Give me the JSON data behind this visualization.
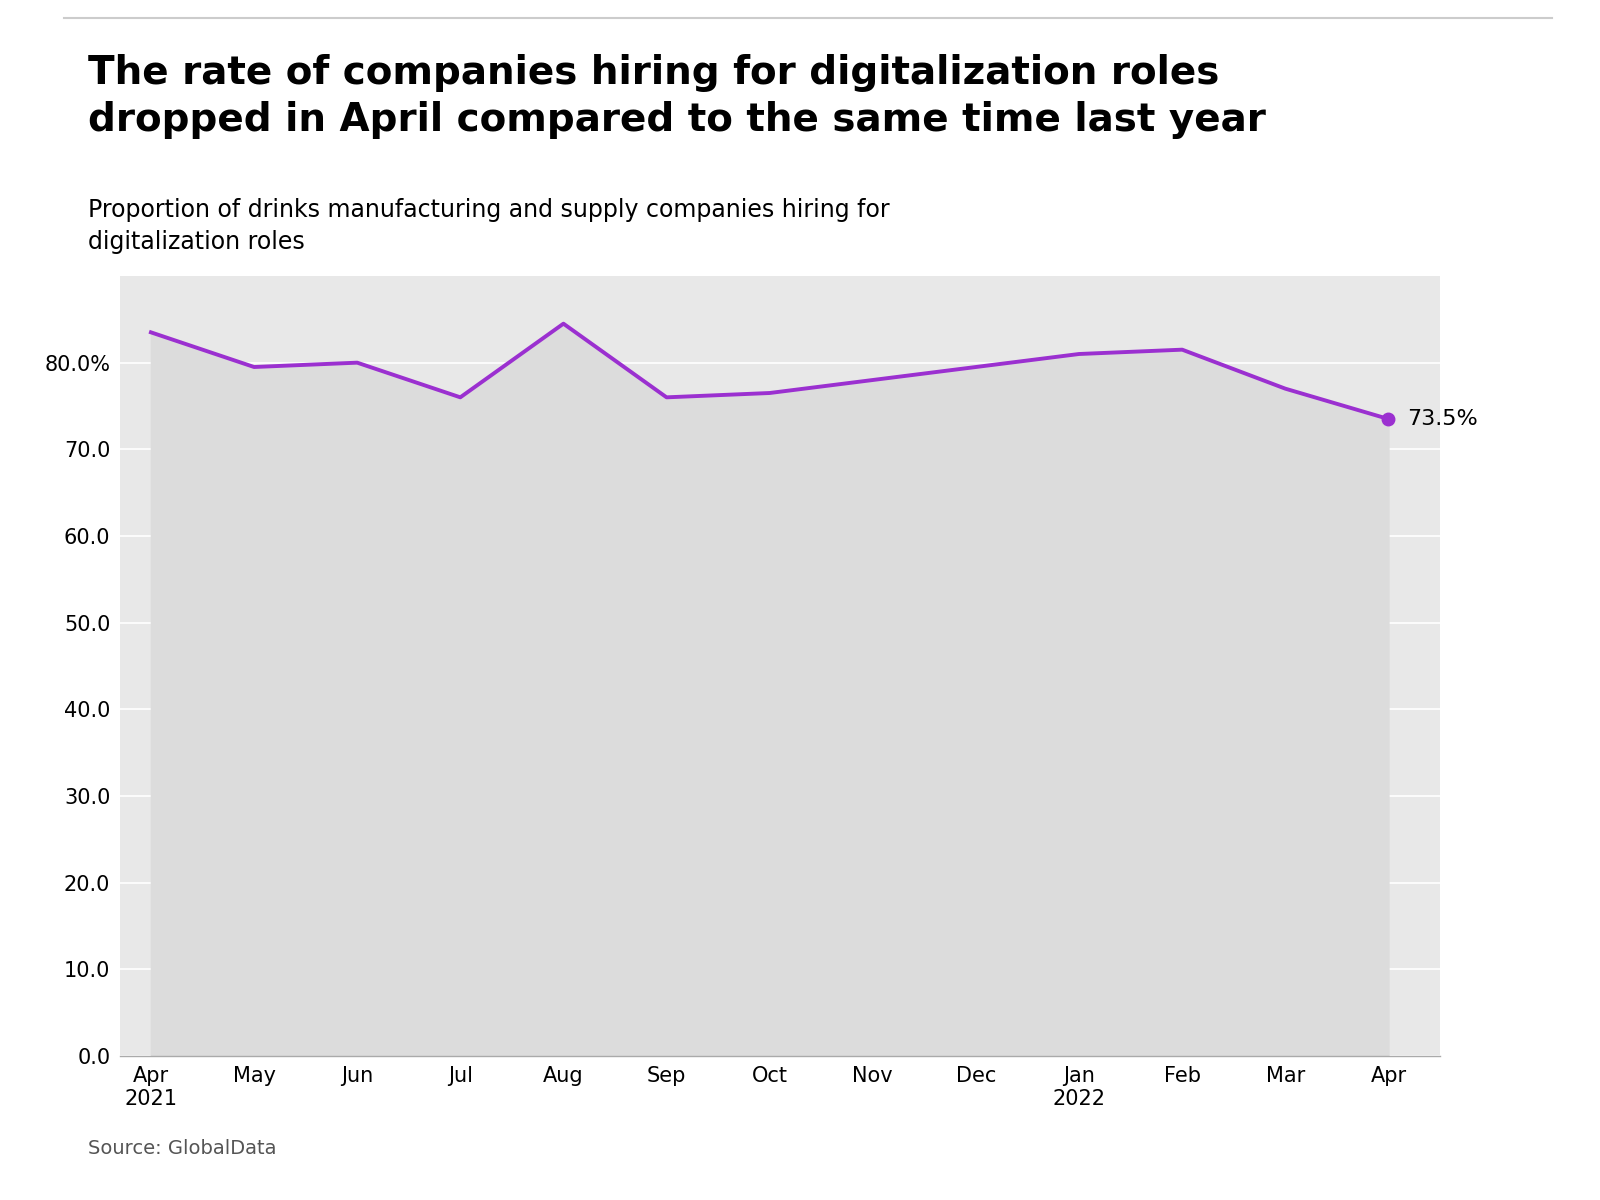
{
  "title": "The rate of companies hiring for digitalization roles\ndropped in April compared to the same time last year",
  "subtitle": "Proportion of drinks manufacturing and supply companies hiring for\ndigitalization roles",
  "source": "Source: GlobalData",
  "x_labels": [
    "Apr\n2021",
    "May",
    "Jun",
    "Jul",
    "Aug",
    "Sep",
    "Oct",
    "Nov",
    "Dec",
    "Jan\n2022",
    "Feb",
    "Mar",
    "Apr"
  ],
  "y_values": [
    83.5,
    79.5,
    80.0,
    76.0,
    84.5,
    76.0,
    76.5,
    78.0,
    79.5,
    81.0,
    81.5,
    77.0,
    73.5
  ],
  "line_color": "#9b30d0",
  "fill_color": "#dcdcdc",
  "end_label": "73.5%",
  "figure_bg_color": "#ffffff",
  "plot_bg_color": "#e8e8e8",
  "ylim": [
    0,
    90
  ],
  "yticks": [
    0,
    10,
    20,
    30,
    40,
    50,
    60,
    70,
    80
  ],
  "ytick_labels": [
    "0.0",
    "10.0",
    "20.0",
    "30.0",
    "40.0",
    "50.0",
    "60.0",
    "70.0",
    "80.0%"
  ],
  "title_fontsize": 28,
  "subtitle_fontsize": 17,
  "tick_fontsize": 15,
  "source_fontsize": 14
}
